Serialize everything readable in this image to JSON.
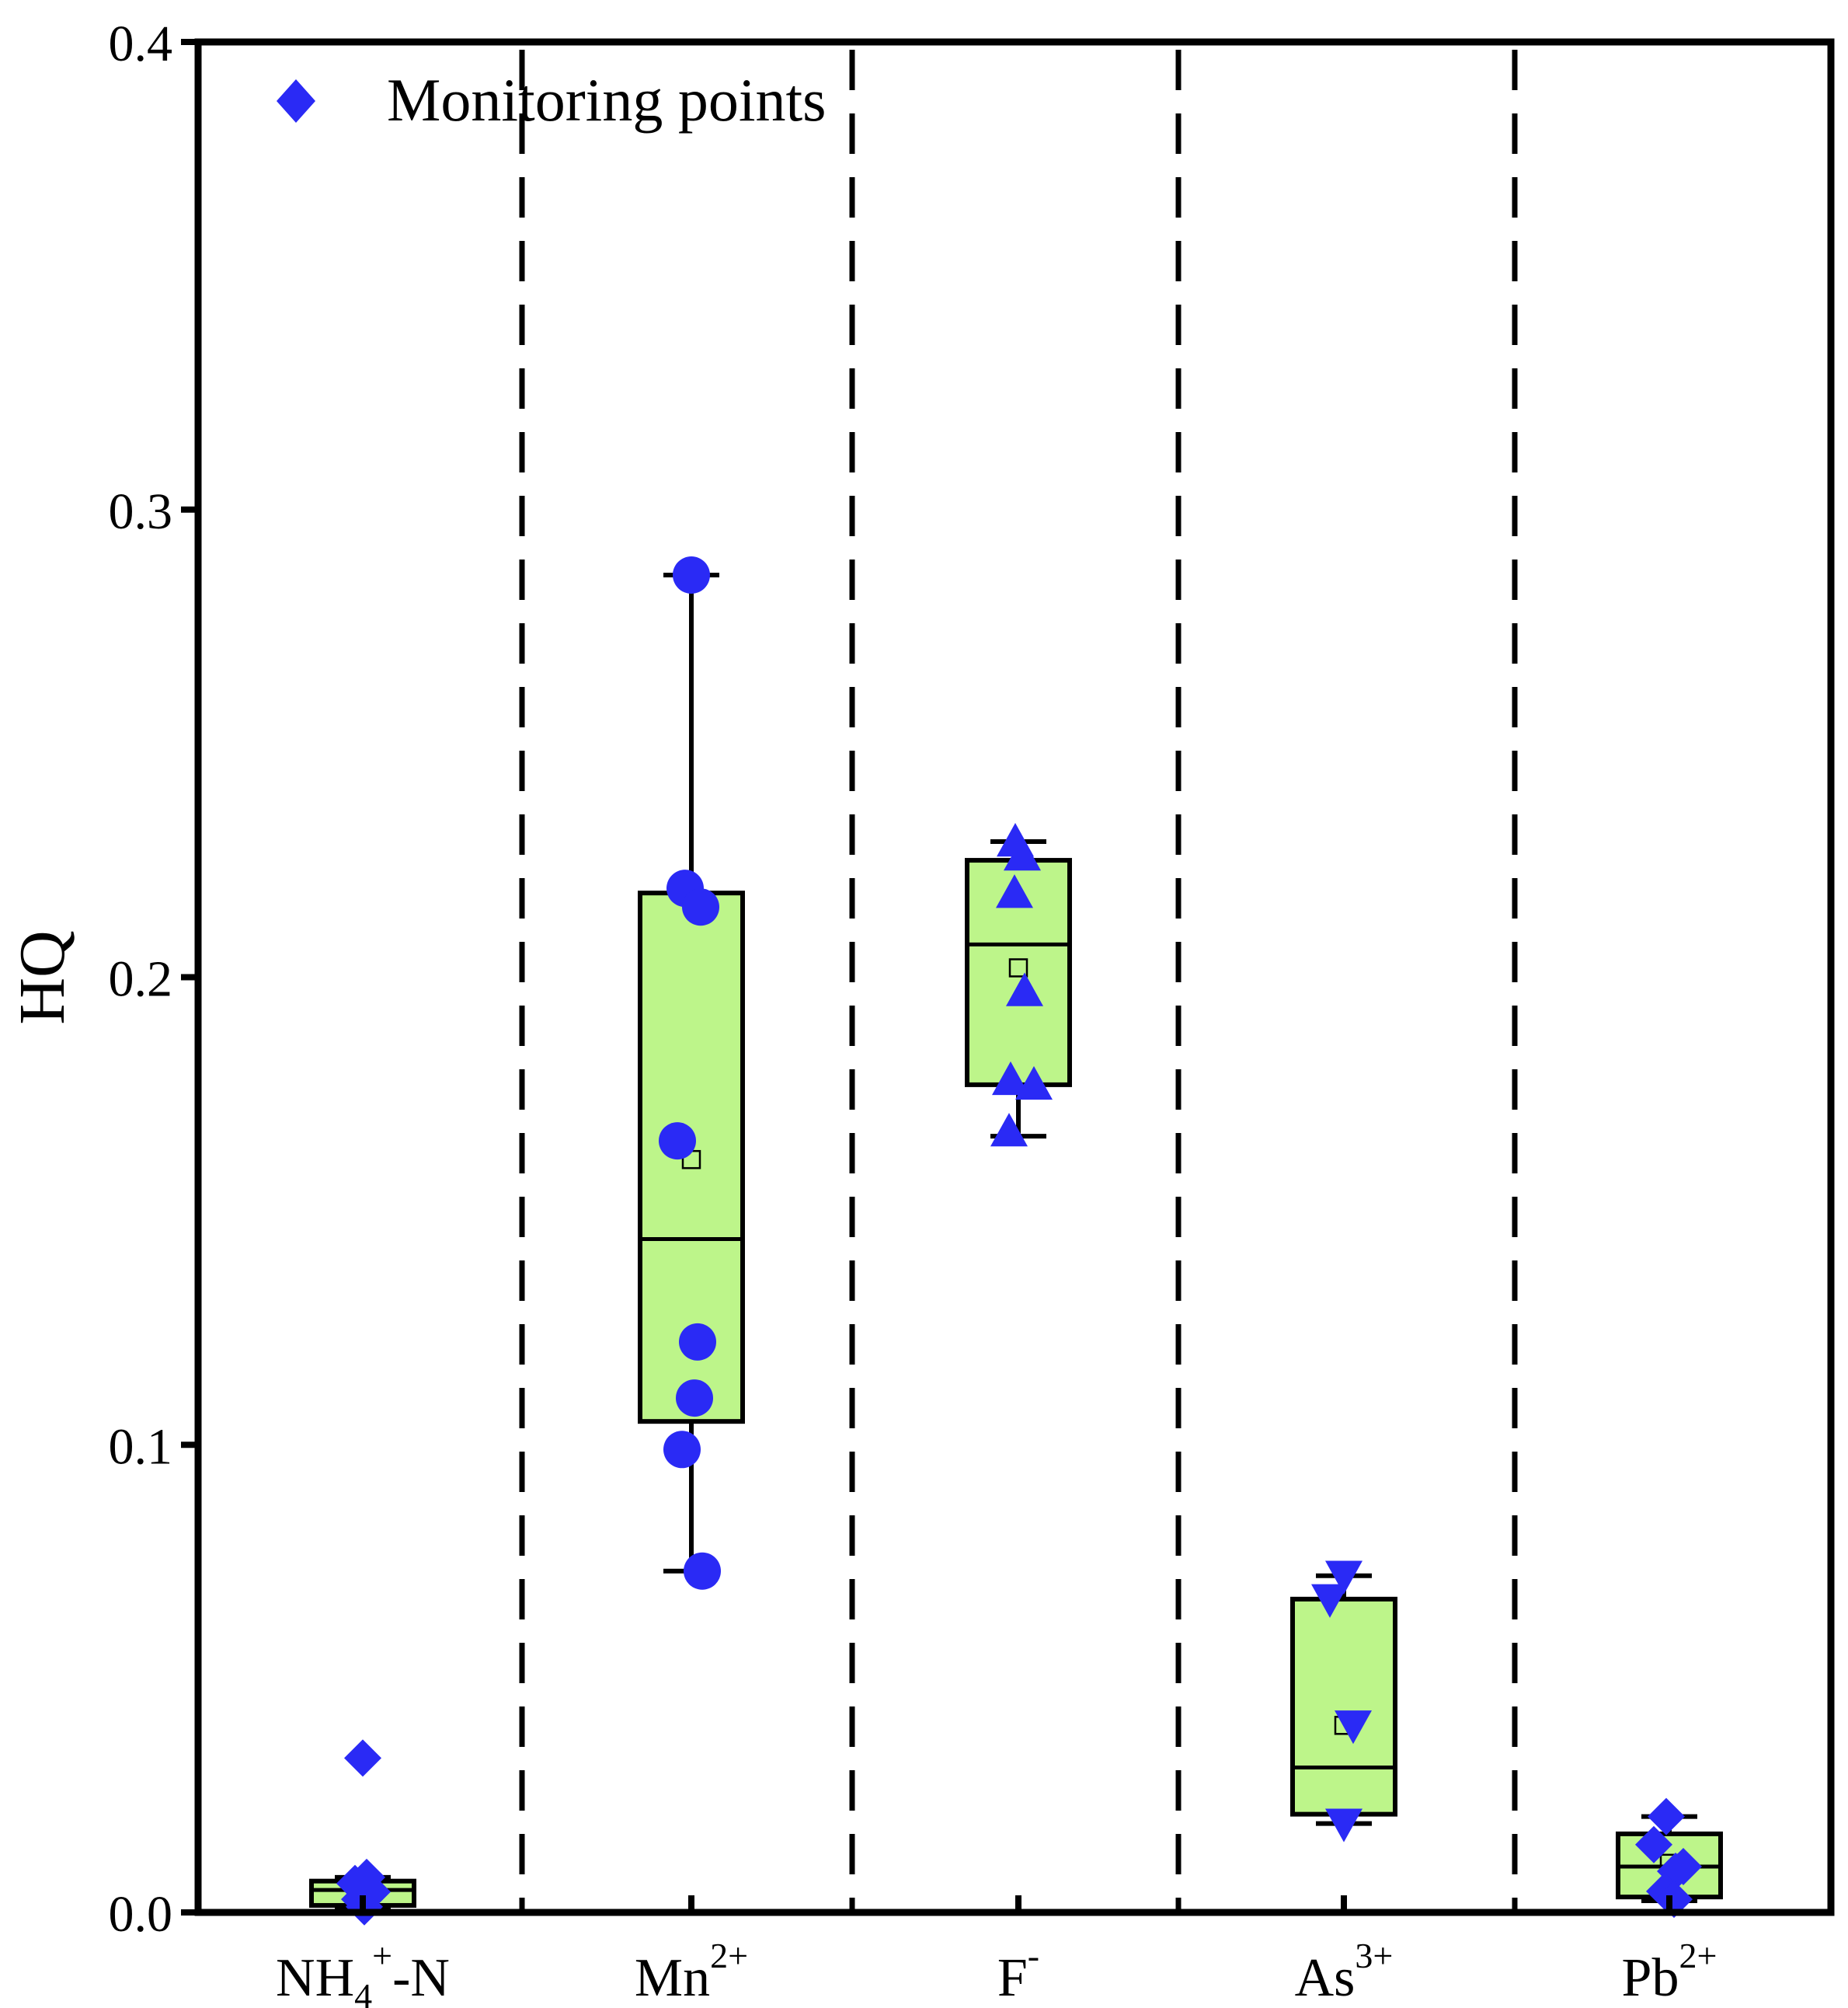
{
  "chart_data": {
    "type": "box",
    "ylabel": "HQ",
    "ylim": [
      0.0,
      0.4
    ],
    "yticks": [
      "0.0",
      "0.1",
      "0.2",
      "0.3",
      "0.4"
    ],
    "grid": false,
    "legend": {
      "position": "top-left",
      "label": "Monitoring points",
      "marker": "diamond"
    },
    "colors": {
      "box_fill": "#bdf58a",
      "points": "#2a2af5",
      "lines": "#000000"
    },
    "categories": [
      {
        "label_main": "NH",
        "sub": "4",
        "sup": "+",
        "suffix": "-N",
        "marker": "diamond",
        "stats": {
          "whisker_low": 0.0008,
          "q1": 0.0015,
          "median": 0.0048,
          "q3": 0.0067,
          "whisker_high": 0.0075,
          "mean": 0.0045
        },
        "points": [
          0.033,
          0.0075,
          0.0062,
          0.0044,
          0.0028,
          0.0012
        ]
      },
      {
        "label_main": "Mn",
        "sub": "",
        "sup": "2+",
        "suffix": "",
        "marker": "circle",
        "stats": {
          "whisker_low": 0.073,
          "q1": 0.105,
          "median": 0.144,
          "q3": 0.218,
          "whisker_high": 0.286,
          "mean": 0.161
        },
        "points": [
          0.286,
          0.219,
          0.215,
          0.165,
          0.122,
          0.11,
          0.099,
          0.073
        ]
      },
      {
        "label_main": "F",
        "sub": "",
        "sup": "-",
        "suffix": "",
        "marker": "triangle-up",
        "stats": {
          "whisker_low": 0.166,
          "q1": 0.177,
          "median": 0.207,
          "q3": 0.225,
          "whisker_high": 0.229,
          "mean": 0.202
        },
        "points": [
          0.229,
          0.226,
          0.218,
          0.197,
          0.178,
          0.177,
          0.167
        ]
      },
      {
        "label_main": "As",
        "sub": "",
        "sup": "3+",
        "suffix": "",
        "marker": "triangle-down",
        "stats": {
          "whisker_low": 0.019,
          "q1": 0.021,
          "median": 0.031,
          "q3": 0.067,
          "whisker_high": 0.072,
          "mean": 0.04
        },
        "points": [
          0.072,
          0.067,
          0.04,
          0.019
        ]
      },
      {
        "label_main": "Pb",
        "sub": "",
        "sup": "2+",
        "suffix": "",
        "marker": "diamond",
        "stats": {
          "whisker_low": 0.0025,
          "q1": 0.0033,
          "median": 0.0098,
          "q3": 0.0168,
          "whisker_high": 0.0205,
          "mean": 0.0105
        },
        "points": [
          0.0205,
          0.0145,
          0.0098,
          0.0088,
          0.0045,
          0.0028
        ]
      }
    ]
  }
}
